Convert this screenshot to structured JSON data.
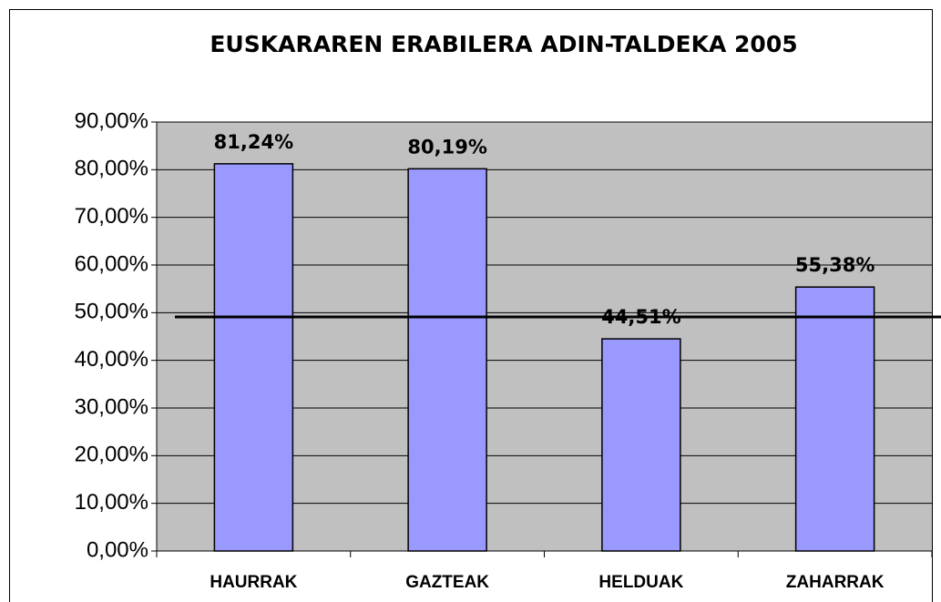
{
  "chart_data": {
    "type": "bar",
    "title": "EUSKARAREN ERABILERA ADIN-TALDEKA 2005",
    "categories": [
      "HAURRAK",
      "GAZTEAK",
      "HELDUAK",
      "ZAHARRAK"
    ],
    "values": [
      81.24,
      80.19,
      44.51,
      55.38
    ],
    "value_labels": [
      "81,24%",
      "80,19%",
      "44,51%",
      "55,38%"
    ],
    "color": "#9999ff",
    "ylim": [
      0,
      90
    ],
    "yticks": [
      {
        "value": 0,
        "label": "0,00%"
      },
      {
        "value": 10,
        "label": "10,00%"
      },
      {
        "value": 20,
        "label": "20,00%"
      },
      {
        "value": 30,
        "label": "30,00%"
      },
      {
        "value": 40,
        "label": "40,00%"
      },
      {
        "value": 50,
        "label": "50,00%"
      },
      {
        "value": 60,
        "label": "60,00%"
      },
      {
        "value": 70,
        "label": "70,00%"
      },
      {
        "value": 80,
        "label": "80,00%"
      },
      {
        "value": 90,
        "label": "90,00%"
      }
    ],
    "grid": true,
    "reference_line": 49.1
  }
}
